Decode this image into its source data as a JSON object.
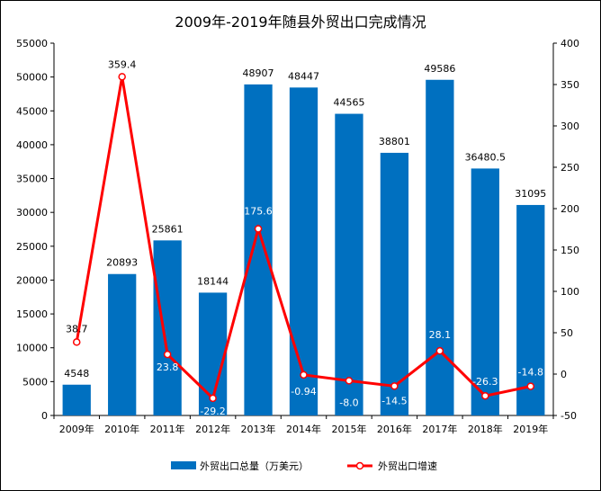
{
  "chart_data": {
    "type": "bar",
    "title": "2009年-2019年随县外贸出口完成情况",
    "categories": [
      "2009年",
      "2010年",
      "2011年",
      "2012年",
      "2013年",
      "2014年",
      "2015年",
      "2016年",
      "2017年",
      "2018年",
      "2019年"
    ],
    "series": [
      {
        "name": "外贸出口总量（万美元）",
        "type": "bar",
        "axis": "left",
        "color": "#0070C0",
        "values": [
          4548,
          20893,
          25861,
          18144,
          48907,
          48447,
          44565,
          38801,
          49586,
          36480.5,
          31095
        ],
        "labels": [
          "4548",
          "20893",
          "25861",
          "18144",
          "48907",
          "48447",
          "44565",
          "38801",
          "49586",
          "36480.5",
          "31095"
        ]
      },
      {
        "name": "外贸出口增速",
        "type": "line",
        "axis": "right",
        "color": "#FF0000",
        "values": [
          38.7,
          359.4,
          23.8,
          -29.2,
          175.6,
          -0.94,
          -8.0,
          -14.5,
          28.1,
          -26.3,
          -14.8
        ],
        "labels": [
          "38.7",
          "359.4",
          "23.8",
          "-29.2",
          "175.6",
          "-0.94",
          "-8.0",
          "-14.5",
          "28.1",
          "-26.3",
          "-14.8"
        ]
      }
    ],
    "y_left": {
      "range": [
        0,
        55000
      ],
      "ticks": [
        "0",
        "5000",
        "10000",
        "15000",
        "20000",
        "25000",
        "30000",
        "35000",
        "40000",
        "45000",
        "50000",
        "55000"
      ]
    },
    "y_right": {
      "range": [
        -50,
        400
      ],
      "ticks": [
        "-50",
        "0",
        "50",
        "100",
        "150",
        "200",
        "250",
        "300",
        "350",
        "400"
      ]
    },
    "grid": false,
    "legend_position": "bottom"
  }
}
